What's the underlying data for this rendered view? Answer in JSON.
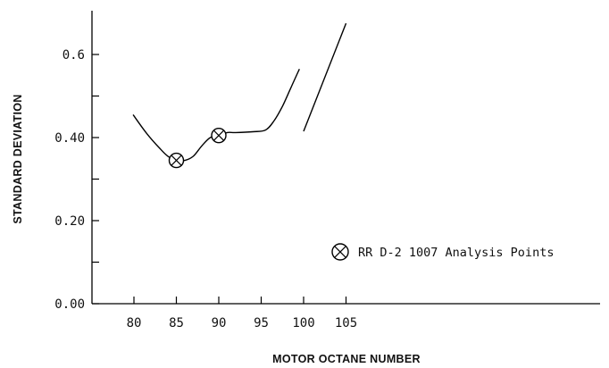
{
  "chart_data": {
    "type": "line",
    "title": "",
    "xlabel": "MOTOR OCTANE NUMBER",
    "ylabel": "STANDARD DEVIATION",
    "xlim": [
      77,
      106
    ],
    "ylim": [
      0.0,
      0.7
    ],
    "x_ticks": [
      80,
      85,
      90,
      95,
      100,
      105
    ],
    "x_tick_labels": [
      "80",
      "85",
      "90",
      "95",
      "100",
      "105"
    ],
    "y_ticks": [
      0.0,
      0.1,
      0.2,
      0.3,
      0.4,
      0.5,
      0.6
    ],
    "y_tick_labels": [
      "0.00",
      "",
      "0.20",
      "",
      "0.40",
      "",
      "0.6"
    ],
    "grid": false,
    "series": [
      {
        "x": [
          79.9,
          81.5,
          83.0,
          84.0,
          85.0,
          86.0,
          87.0,
          88.0,
          89.0,
          90.0,
          91.0,
          92.0,
          94.0,
          95.5,
          96.5,
          97.5,
          98.5,
          99.5
        ],
        "y": [
          0.455,
          0.41,
          0.375,
          0.355,
          0.345,
          0.345,
          0.355,
          0.38,
          0.4,
          0.405,
          0.412,
          0.412,
          0.414,
          0.418,
          0.44,
          0.475,
          0.52,
          0.565
        ]
      },
      {
        "x": [
          100.0,
          105.0
        ],
        "y": [
          0.415,
          0.675
        ]
      }
    ],
    "markers": [
      {
        "x": 85.0,
        "y": 0.345
      },
      {
        "x": 90.0,
        "y": 0.405
      }
    ],
    "legend": {
      "label": "RR D-2 1007 Analysis Points",
      "position": "bottom-right"
    }
  }
}
